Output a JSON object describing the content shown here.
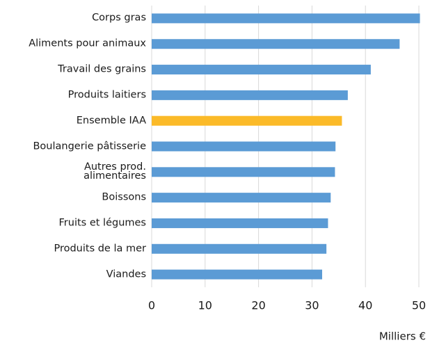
{
  "chart_data": {
    "type": "barh",
    "categories": [
      "Corps gras",
      "Aliments pour animaux",
      "Travail des grains",
      "Produits laitiers",
      "Ensemble IAA",
      "Boulangerie pâtisserie",
      "Autres prod.\nalimentaires",
      "Boissons",
      "Fruits et légumes",
      "Produits de la mer",
      "Viandes"
    ],
    "values": [
      50.2,
      46.4,
      41,
      36.7,
      35.6,
      34.4,
      34.3,
      33.5,
      33,
      32.7,
      31.9
    ],
    "colors": [
      "#5b9bd5",
      "#5b9bd5",
      "#5b9bd5",
      "#5b9bd5",
      "#fbba28",
      "#5b9bd5",
      "#5b9bd5",
      "#5b9bd5",
      "#5b9bd5",
      "#5b9bd5",
      "#5b9bd5"
    ],
    "xlim": [
      0,
      50
    ],
    "xticks": [
      0,
      10,
      20,
      30,
      40,
      50
    ],
    "grid": true,
    "x_label": "Milliers €"
  }
}
